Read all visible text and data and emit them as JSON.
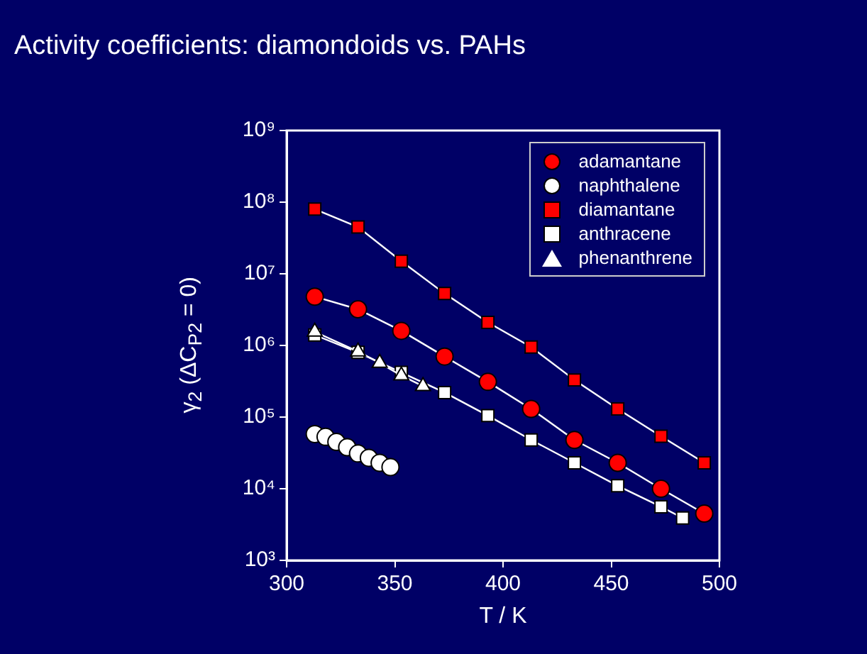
{
  "chart_data": {
    "type": "line",
    "title": "Activity coefficients: diamondoids vs. PAHs",
    "xlabel": "T / K",
    "ylabel": "γ$_{2}$ (ΔC$_{P2}$ = 0)",
    "log": "y",
    "xlim": [
      300,
      500
    ],
    "xticks": [
      300,
      350,
      400,
      450,
      500
    ],
    "ylim": [
      1000,
      1000000000
    ],
    "yticks": [
      {
        "value": 1000,
        "label": "10³"
      },
      {
        "value": 10000,
        "label": "10⁴"
      },
      {
        "value": 100000,
        "label": "10⁵"
      },
      {
        "value": 1000000,
        "label": "10⁶"
      },
      {
        "value": 10000000,
        "label": "10⁷"
      },
      {
        "value": 100000000,
        "label": "10⁸"
      },
      {
        "value": 1000000000,
        "label": "10⁹"
      }
    ],
    "grid": false,
    "legend": "top right",
    "series": [
      {
        "name": "adamantane",
        "marker": "circle",
        "color": "#ff0000",
        "x": [
          313,
          333,
          353,
          373,
          393,
          413,
          433,
          453,
          473,
          493
        ],
        "values": [
          4800000,
          3200000,
          1600000,
          700000,
          310000,
          130000,
          48000,
          23000,
          10000,
          4500
        ]
      },
      {
        "name": "naphthalene",
        "type": "scatter",
        "marker": "circle",
        "color": "#ffffff",
        "x": [
          313,
          318,
          323,
          328,
          333,
          338,
          343,
          348
        ],
        "values": [
          58000,
          53000,
          45000,
          38000,
          31000,
          27000,
          23000,
          20000
        ]
      },
      {
        "name": "diamantane",
        "marker": "square",
        "color": "#ff0000",
        "x": [
          313,
          333,
          353,
          373,
          393,
          413,
          433,
          453,
          473,
          493
        ],
        "values": [
          80000000,
          45000000,
          15000000,
          5300000,
          2100000,
          950000,
          330000,
          130000,
          54000,
          23000
        ]
      },
      {
        "name": "anthracene",
        "marker": "square",
        "color": "#ffffff",
        "x": [
          313,
          333,
          353,
          373,
          393,
          413,
          433,
          453,
          473,
          483
        ],
        "values": [
          1400000,
          800000,
          420000,
          220000,
          105000,
          48000,
          23000,
          11000,
          5600,
          3900
        ]
      },
      {
        "name": "phenanthrene",
        "marker": "triangle",
        "color": "#ffffff",
        "x": [
          313,
          333,
          343,
          353,
          363
        ],
        "values": [
          1550000,
          820000,
          570000,
          380000,
          270000
        ]
      }
    ]
  }
}
